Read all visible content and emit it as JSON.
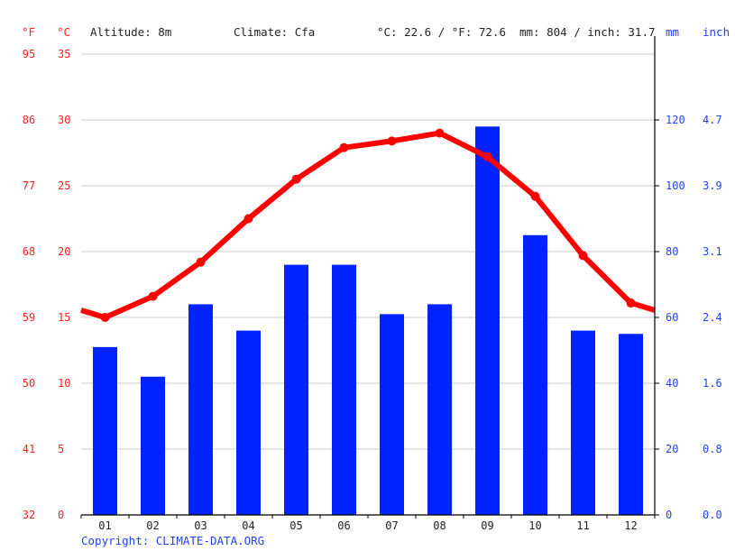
{
  "header": {
    "unit_f": "°F",
    "unit_c": "°C",
    "altitude": "Altitude: 8m",
    "climate": "Climate: Cfa",
    "temp_avg": "°C: 22.6 / °F: 72.6",
    "precip_total": "mm: 804 / inch: 31.7",
    "unit_mm": "mm",
    "unit_inch": "inch"
  },
  "copyright": "Copyright: CLIMATE-DATA.ORG",
  "colors": {
    "temperature_line": "#ff0000",
    "precip_bar": "#0022ff",
    "left_axis_text": "#ff2222",
    "right_axis_text": "#2244ee",
    "grid": "#c8c8c8"
  },
  "chart_data": {
    "type": "bar+line",
    "title": "",
    "categories": [
      "01",
      "02",
      "03",
      "04",
      "05",
      "06",
      "07",
      "08",
      "09",
      "10",
      "11",
      "12"
    ],
    "series": [
      {
        "name": "Precipitation (mm)",
        "type": "bar",
        "axis": "right",
        "values": [
          51,
          42,
          64,
          56,
          76,
          76,
          61,
          64,
          118,
          85,
          56,
          55
        ]
      },
      {
        "name": "Temperature (°C)",
        "type": "line",
        "axis": "left",
        "values": [
          15.0,
          16.6,
          19.2,
          22.5,
          25.5,
          27.9,
          28.4,
          29.0,
          27.2,
          24.2,
          19.7,
          16.1
        ]
      }
    ],
    "left_axis": {
      "celsius_ticks": [
        "0",
        "5",
        "10",
        "15",
        "20",
        "25",
        "30",
        "35"
      ],
      "fahrenheit_ticks": [
        "32",
        "41",
        "50",
        "59",
        "68",
        "77",
        "86",
        "95"
      ],
      "range": [
        0,
        35
      ]
    },
    "right_axis": {
      "mm_ticks": [
        "0",
        "20",
        "40",
        "60",
        "80",
        "100",
        "120"
      ],
      "inch_ticks": [
        "0.0",
        "0.8",
        "1.6",
        "2.4",
        "3.1",
        "3.9",
        "4.7"
      ],
      "range": [
        0,
        140
      ]
    },
    "grid": true,
    "legend": "none"
  }
}
